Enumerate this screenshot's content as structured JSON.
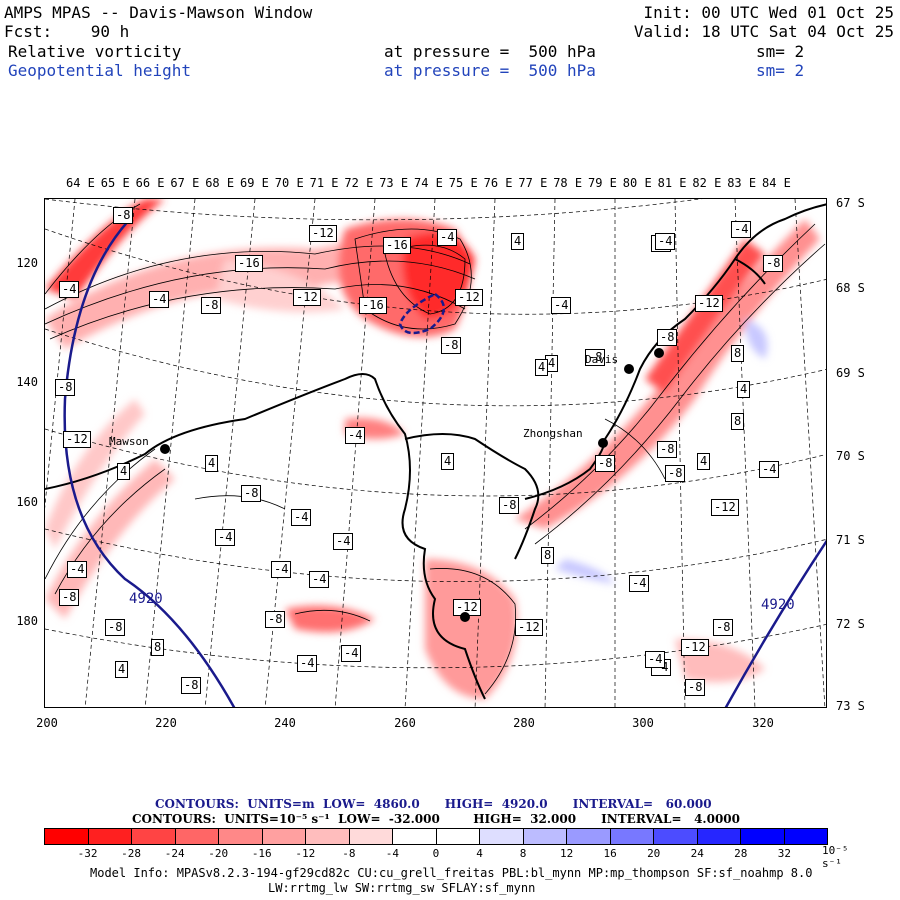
{
  "header": {
    "line1_left": "AMPS MPAS -- Davis-Mawson Window",
    "line1_right": "Init: 00 UTC Wed 01 Oct 25",
    "line2_left": "Fcst:    90 h",
    "line2_right": "Valid: 18 UTC Sat 04 Oct 25",
    "field1_name": "Relative vorticity",
    "field1_level": "at pressure =  500 hPa",
    "field1_sm": "sm= 2",
    "field2_name": "Geopotential height",
    "field2_level": "at pressure =  500 hPa",
    "field2_sm": "sm= 2"
  },
  "lon_labels": [
    "64 E",
    "65 E",
    "66 E",
    "67 E",
    "68 E",
    "69 E",
    "70 E",
    "71 E",
    "72 E",
    "73 E",
    "74 E",
    "75 E",
    "76 E",
    "77 E",
    "78 E",
    "79 E",
    "80 E",
    "81 E",
    "82 E",
    "83 E",
    "84 E"
  ],
  "lat_labels": [
    "67 S",
    "68 S",
    "69 S",
    "70 S",
    "71 S",
    "72 S",
    "73 S"
  ],
  "y_ticks": [
    "120",
    "140",
    "160",
    "180"
  ],
  "x_ticks": [
    "200",
    "220",
    "240",
    "260",
    "280",
    "300",
    "320"
  ],
  "stations": [
    {
      "name": "Mawson"
    },
    {
      "name": "Davis"
    },
    {
      "name": "Zhongshan"
    },
    {
      "name": ""
    },
    {
      "name": ""
    }
  ],
  "contour_labels": [
    "-8",
    "-4",
    "-12",
    "-16",
    "-4",
    "4",
    "-4",
    "-8",
    "-16",
    "-8",
    "-12",
    "-16",
    "-12",
    "-8",
    "-4",
    "-4",
    "-8",
    "-12",
    "-12",
    "-4",
    "4",
    "-4",
    "4",
    "4",
    "-8",
    "-4",
    "4",
    "-8",
    "-4",
    "-4",
    "-8",
    "-4",
    "-8",
    "-8",
    "4",
    "8",
    "4",
    "-4",
    "-8",
    "-4",
    "-4",
    "-4",
    "8",
    "8",
    "4",
    "-4",
    "-8",
    "-12",
    "-12",
    "-4",
    "-8",
    "-8",
    "-4",
    "4",
    "8",
    "-8",
    "-12",
    "-8",
    "-4",
    "-12",
    "-8",
    "4",
    "-4",
    "-8"
  ],
  "height_labels": [
    "4920",
    "4920"
  ],
  "contour_info": {
    "line1": "CONTOURS:  UNITS=m  LOW=  4860.0      HIGH=  4920.0      INTERVAL=   60.000",
    "line2": "CONTOURS:  UNITS=10⁻⁵ s⁻¹  LOW=  -32.000        HIGH=  32.000      INTERVAL=   4.0000"
  },
  "colorbar": {
    "colors": [
      "#ff0000",
      "#ff2020",
      "#ff4444",
      "#ff6666",
      "#ff8888",
      "#ffa0a0",
      "#ffbdbd",
      "#ffdada",
      "#ffffff",
      "#ffffff",
      "#dedeff",
      "#bcbcff",
      "#9a9aff",
      "#7878ff",
      "#4c4cff",
      "#2626ff",
      "#0000ff",
      "#0000ff"
    ],
    "labels": [
      "-32",
      "-28",
      "-24",
      "-20",
      "-16",
      "-12",
      "-8",
      "-4",
      "0",
      "4",
      "8",
      "12",
      "16",
      "20",
      "24",
      "28",
      "32"
    ],
    "unit": "10⁻⁵ s⁻¹"
  },
  "footer": {
    "line1": "Model Info: MPASv8.2.3-194-gf29cd82c CU:cu_grell_freitas PBL:bl_mynn MP:mp_thompson SF:sf_noahmp 8.0",
    "line2": "LW:rrtmg_lw SW:rrtmg_sw SFLAY:sf_mynn"
  }
}
